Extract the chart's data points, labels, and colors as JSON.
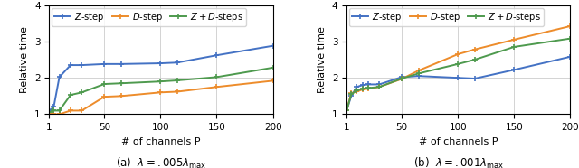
{
  "left": {
    "x": [
      1,
      5,
      10,
      20,
      30,
      50,
      65,
      100,
      115,
      150,
      200
    ],
    "z_step": [
      1.1,
      1.2,
      2.02,
      2.35,
      2.35,
      2.38,
      2.38,
      2.4,
      2.42,
      2.62,
      2.88
    ],
    "d_step": [
      1.0,
      1.0,
      1.0,
      1.1,
      1.1,
      1.48,
      1.5,
      1.6,
      1.62,
      1.75,
      1.92
    ],
    "zd_steps": [
      1.05,
      1.1,
      1.1,
      1.53,
      1.6,
      1.83,
      1.85,
      1.9,
      1.93,
      2.02,
      2.28
    ],
    "xlabel": "# of channels P",
    "ylabel": "Relative time",
    "caption": "(a)  $\\lambda = .005\\lambda_{\\mathrm{max}}$",
    "ylim": [
      1,
      4
    ],
    "yticks": [
      1,
      2,
      3,
      4
    ],
    "xticks": [
      1,
      50,
      100,
      150,
      200
    ]
  },
  "right": {
    "x": [
      1,
      5,
      10,
      15,
      20,
      30,
      50,
      65,
      100,
      115,
      150,
      200
    ],
    "z_step": [
      1.1,
      1.5,
      1.75,
      1.8,
      1.82,
      1.82,
      2.02,
      2.05,
      2.0,
      1.98,
      2.22,
      2.58
    ],
    "d_step": [
      1.1,
      1.58,
      1.62,
      1.68,
      1.7,
      1.75,
      1.97,
      2.2,
      2.65,
      2.78,
      3.05,
      3.42
    ],
    "zd_steps": [
      1.1,
      1.55,
      1.65,
      1.7,
      1.72,
      1.75,
      1.98,
      2.12,
      2.38,
      2.5,
      2.85,
      3.08
    ],
    "xlabel": "# of channels P",
    "ylabel": "Relative time",
    "caption": "(b)  $\\lambda = .001\\lambda_{\\mathrm{max}}$",
    "ylim": [
      1,
      4
    ],
    "yticks": [
      1,
      2,
      3,
      4
    ],
    "xticks": [
      1,
      50,
      100,
      150,
      200
    ]
  },
  "colors": {
    "z_step": "#4472c4",
    "d_step": "#ed8c2b",
    "zd_steps": "#4e9a4e"
  },
  "legend_labels": [
    "$Z$-step",
    "$D$-step",
    "$Z+D$-steps"
  ],
  "marker": "+",
  "markersize": 5,
  "linewidth": 1.4,
  "figsize": [
    6.4,
    1.86
  ],
  "dpi": 100
}
